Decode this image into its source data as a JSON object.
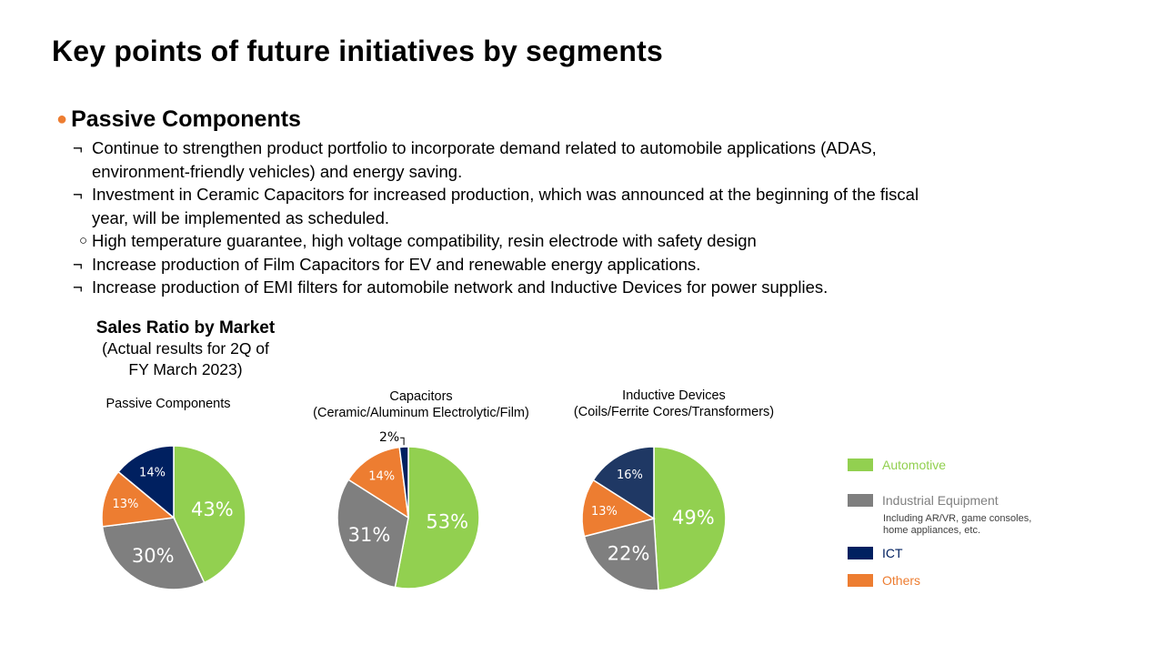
{
  "page": {
    "title": "Key points of future initiatives by segments",
    "section_title": "Passive Components",
    "bullet_marker": "●",
    "bullets": [
      {
        "marker": "¬",
        "lines": [
          "Continue to strengthen product portfolio to incorporate demand related to automobile applications (ADAS,",
          "environment-friendly vehicles) and energy saving."
        ]
      },
      {
        "marker": "¬",
        "lines": [
          "Investment in Ceramic Capacitors for increased production, which was announced at the beginning of the fiscal",
          "year, will be implemented as scheduled."
        ]
      },
      {
        "marker": "○",
        "lines": [
          "High temperature guarantee, high voltage compatibility, resin electrode with safety design"
        ]
      },
      {
        "marker": "¬",
        "lines": [
          "Increase production of Film Capacitors for EV and renewable energy applications."
        ]
      },
      {
        "marker": "¬",
        "lines": [
          "Increase production of EMI filters for automobile network and Inductive Devices for power supplies."
        ]
      }
    ],
    "ratio_heading": {
      "title": "Sales Ratio by Market",
      "line1": "(Actual results for 2Q of",
      "line2": "FY March 2023)"
    }
  },
  "colors": {
    "Automotive": "#92D050",
    "Industrial Equipment": "#7F7F7F",
    "ICT": "#002060",
    "ICT_inductive": "#1F3864",
    "Others": "#ED7D31",
    "section_dot": "#ED7D31"
  },
  "legend": {
    "items": [
      {
        "name": "Automotive",
        "color": "#92D050",
        "text_color": "#92D050"
      },
      {
        "name": "Industrial Equipment",
        "color": "#7F7F7F",
        "text_color": "#7F7F7F"
      },
      {
        "name": "ICT",
        "color": "#002060",
        "text_color": "#002060"
      },
      {
        "name": "Others",
        "color": "#ED7D31",
        "text_color": "#ED7D31"
      }
    ],
    "note_line1": "Including AR/VR,  game consoles,",
    "note_line2": "home appliances, etc."
  },
  "chart_data": [
    {
      "type": "pie",
      "title": "Passive Components",
      "subtitle": "",
      "categories": [
        "Automotive",
        "Industrial Equipment",
        "Others",
        "ICT"
      ],
      "values": [
        43,
        30,
        13,
        14
      ],
      "labels": [
        "43%",
        "30%",
        "13%",
        "14%"
      ]
    },
    {
      "type": "pie",
      "title": "Capacitors",
      "subtitle": "(Ceramic/Aluminum Electrolytic/Film)",
      "categories": [
        "Automotive",
        "Industrial Equipment",
        "Others",
        "ICT"
      ],
      "values": [
        53,
        31,
        14,
        2
      ],
      "labels": [
        "53%",
        "31%",
        "14%",
        "2%"
      ]
    },
    {
      "type": "pie",
      "title": "Inductive  Devices",
      "subtitle": "(Coils/Ferrite Cores/Transformers)",
      "categories": [
        "Automotive",
        "Industrial Equipment",
        "Others",
        "ICT"
      ],
      "values": [
        49,
        22,
        13,
        16
      ],
      "labels": [
        "49%",
        "22%",
        "13%",
        "16%"
      ]
    }
  ]
}
